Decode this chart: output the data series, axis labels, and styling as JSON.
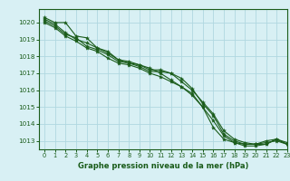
{
  "xlabel": "Graphe pression niveau de la mer (hPa)",
  "xlim": [
    -0.5,
    23
  ],
  "ylim": [
    1012.5,
    1020.8
  ],
  "yticks": [
    1013,
    1014,
    1015,
    1016,
    1017,
    1018,
    1019,
    1020
  ],
  "xticks": [
    0,
    1,
    2,
    3,
    4,
    5,
    6,
    7,
    8,
    9,
    10,
    11,
    12,
    13,
    14,
    15,
    16,
    17,
    18,
    19,
    20,
    21,
    22,
    23
  ],
  "bg_color": "#d8f0f4",
  "grid_color": "#b0d8e0",
  "line_color": "#1a5c1a",
  "tick_color": "#1a5c1a",
  "series": [
    [
      1020.3,
      1020.0,
      1020.0,
      1019.2,
      1019.1,
      1018.5,
      1018.3,
      1017.8,
      1017.7,
      1017.5,
      1017.3,
      1017.0,
      1016.6,
      1016.2,
      1015.7,
      1015.0,
      1013.8,
      1013.1,
      1012.9,
      1012.8,
      1012.8,
      1013.0,
      1013.1,
      1012.8
    ],
    [
      1020.2,
      1019.9,
      1019.4,
      1019.0,
      1018.8,
      1018.5,
      1018.2,
      1017.8,
      1017.6,
      1017.5,
      1017.2,
      1017.2,
      1017.0,
      1016.5,
      1016.0,
      1015.3,
      1014.6,
      1013.6,
      1013.1,
      1012.9,
      1012.8,
      1012.8,
      1013.1,
      1012.9
    ],
    [
      1020.1,
      1019.8,
      1019.3,
      1019.1,
      1018.6,
      1018.4,
      1018.1,
      1017.7,
      1017.6,
      1017.4,
      1017.1,
      1017.1,
      1017.0,
      1016.7,
      1016.1,
      1015.2,
      1014.5,
      1013.4,
      1013.0,
      1012.8,
      1012.8,
      1012.9,
      1013.0,
      1012.8
    ],
    [
      1020.0,
      1019.7,
      1019.2,
      1018.9,
      1018.5,
      1018.3,
      1017.9,
      1017.6,
      1017.5,
      1017.3,
      1017.0,
      1016.8,
      1016.5,
      1016.2,
      1015.8,
      1015.0,
      1014.2,
      1013.3,
      1012.9,
      1012.7,
      1012.7,
      1012.8,
      1013.1,
      1012.8
    ]
  ]
}
